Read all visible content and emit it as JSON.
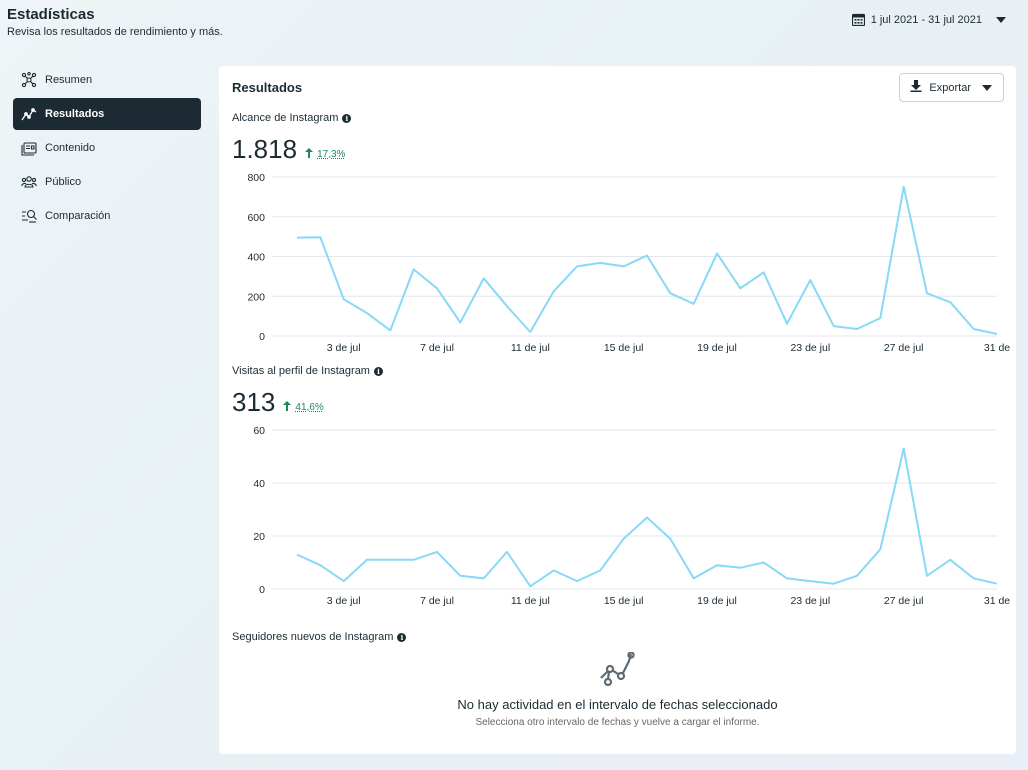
{
  "header": {
    "title": "Estadísticas",
    "subtitle": "Revisa los resultados de rendimiento y más."
  },
  "date_range": {
    "label": "1 jul 2021 - 31 jul 2021",
    "icon": "calendar-icon"
  },
  "sidebar": {
    "items": [
      {
        "label": "Resumen",
        "icon": "overview-icon",
        "active": false
      },
      {
        "label": "Resultados",
        "icon": "trend-icon",
        "active": true
      },
      {
        "label": "Contenido",
        "icon": "content-icon",
        "active": false
      },
      {
        "label": "Público",
        "icon": "audience-icon",
        "active": false
      },
      {
        "label": "Comparación",
        "icon": "compare-icon",
        "active": false
      }
    ]
  },
  "card": {
    "title": "Resultados",
    "export_label": "Exportar"
  },
  "metrics": {
    "reach": {
      "label": "Alcance de Instagram",
      "value": "1.818",
      "delta": "17,3%"
    },
    "profile_visits": {
      "label": "Visitas al perfil de Instagram",
      "value": "313",
      "delta": "41,6%"
    },
    "followers": {
      "label": "Seguidores nuevos de Instagram",
      "empty_title": "No hay actividad en el intervalo de fechas seleccionado",
      "empty_sub": "Selecciona otro intervalo de fechas y vuelve a cargar el informe."
    }
  },
  "colors": {
    "line": "#88d8f7",
    "grid": "#e4e6eb",
    "active_nav": "#1c2b33",
    "positive": "#1b8a5a"
  },
  "chart_data": [
    {
      "type": "line",
      "title": "Alcance de Instagram",
      "x": [
        1,
        2,
        3,
        4,
        5,
        6,
        7,
        8,
        9,
        10,
        11,
        12,
        13,
        14,
        15,
        16,
        17,
        18,
        19,
        20,
        21,
        22,
        23,
        24,
        25,
        26,
        27,
        28,
        29,
        30,
        31
      ],
      "x_ticks": [
        3,
        7,
        11,
        15,
        19,
        23,
        27,
        31
      ],
      "x_tick_labels": [
        "3 de jul",
        "7 de jul",
        "11 de jul",
        "15 de jul",
        "19 de jul",
        "23 de jul",
        "27 de jul",
        "31 de"
      ],
      "series": [
        {
          "values": [
            495,
            497,
            185,
            115,
            28,
            335,
            240,
            68,
            290,
            150,
            20,
            225,
            350,
            368,
            350,
            405,
            215,
            162,
            415,
            240,
            320,
            62,
            282,
            50,
            35,
            90,
            750,
            215,
            170,
            35,
            10
          ]
        }
      ],
      "ylim": [
        0,
        800
      ],
      "y_ticks": [
        0,
        200,
        400,
        600,
        800
      ],
      "grid": true
    },
    {
      "type": "line",
      "title": "Visitas al perfil de Instagram",
      "x": [
        1,
        2,
        3,
        4,
        5,
        6,
        7,
        8,
        9,
        10,
        11,
        12,
        13,
        14,
        15,
        16,
        17,
        18,
        19,
        20,
        21,
        22,
        23,
        24,
        25,
        26,
        27,
        28,
        29,
        30,
        31
      ],
      "x_ticks": [
        3,
        7,
        11,
        15,
        19,
        23,
        27,
        31
      ],
      "x_tick_labels": [
        "3 de jul",
        "7 de jul",
        "11 de jul",
        "15 de jul",
        "19 de jul",
        "23 de jul",
        "27 de jul",
        "31 de"
      ],
      "series": [
        {
          "values": [
            13,
            9,
            3,
            11,
            11,
            11,
            14,
            5,
            4,
            14,
            1,
            7,
            3,
            7,
            19,
            27,
            19,
            4,
            9,
            8,
            10,
            4,
            3,
            2,
            5,
            15,
            53,
            5,
            11,
            4,
            2
          ]
        }
      ],
      "ylim": [
        0,
        60
      ],
      "y_ticks": [
        0,
        20,
        40,
        60
      ],
      "grid": true
    }
  ]
}
